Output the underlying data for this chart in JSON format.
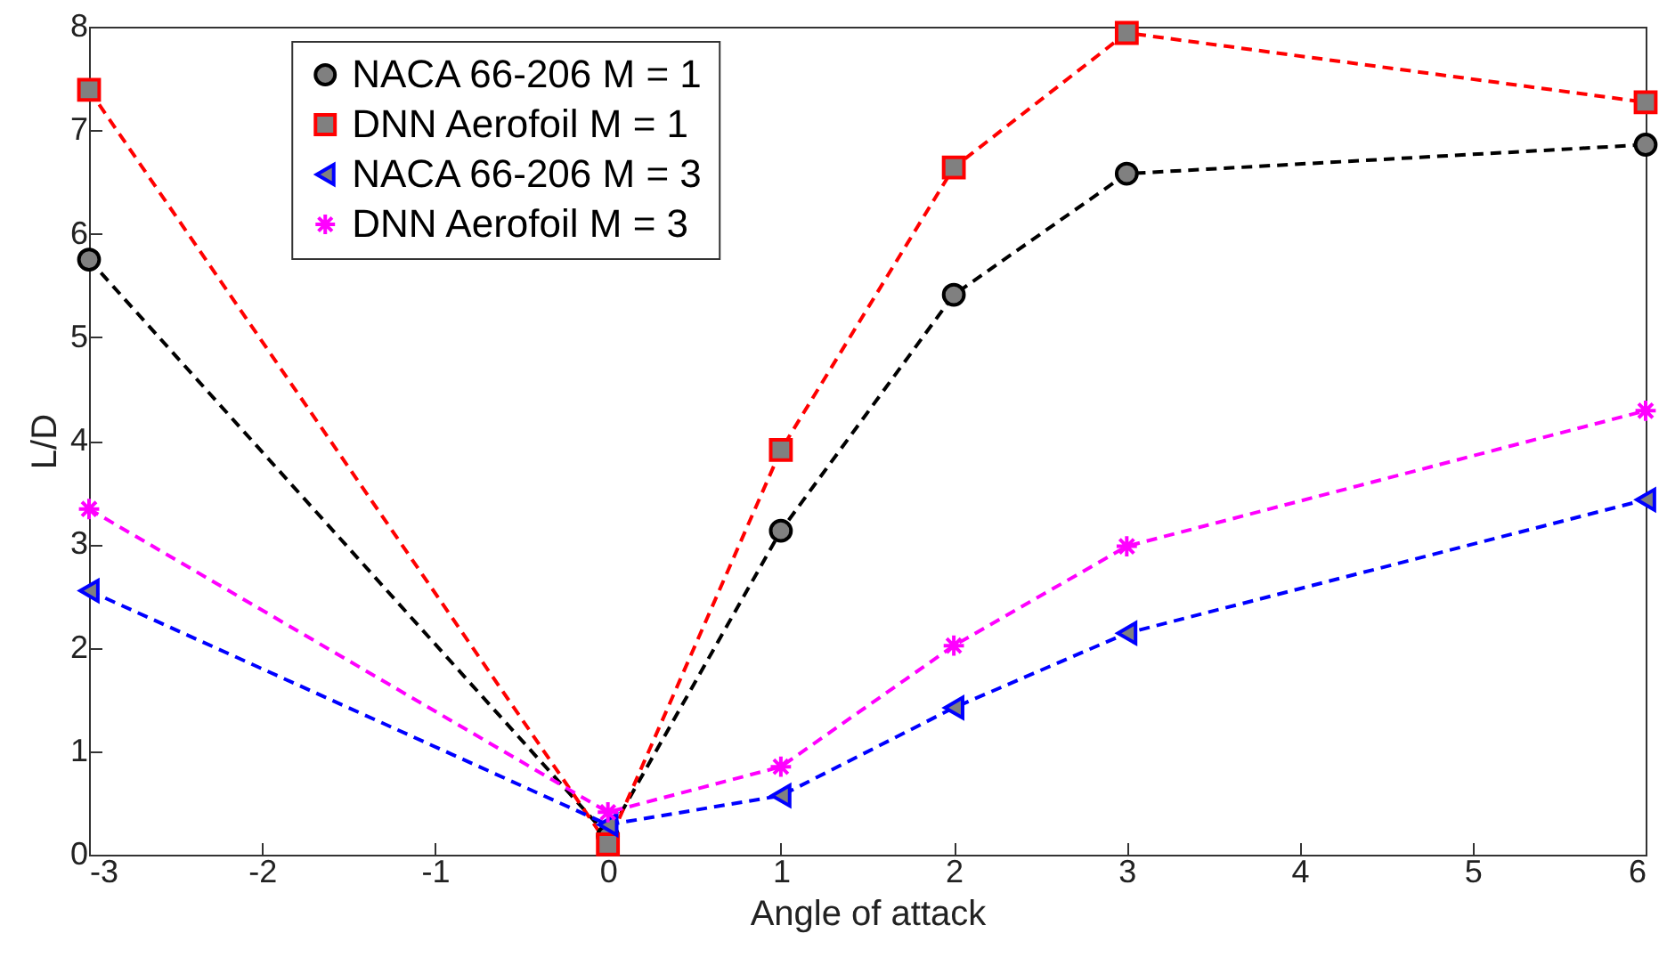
{
  "chart_data": {
    "type": "line",
    "xlabel": "Angle of attack",
    "ylabel": "L/D",
    "xlim": [
      -3,
      6
    ],
    "xticks": [
      -3,
      -2,
      -1,
      0,
      1,
      2,
      3,
      4,
      5,
      6
    ],
    "ylim": [
      0,
      8
    ],
    "yticks": [
      0,
      1,
      2,
      3,
      4,
      5,
      6,
      7,
      8
    ],
    "grid": false,
    "legend": "top left",
    "line_style": "dashed",
    "x": [
      -3,
      0,
      1,
      2,
      3,
      6
    ],
    "series": [
      {
        "name": "NACA 66-206 M = 1",
        "color": "#000000",
        "marker": "circle",
        "values": [
          5.75,
          0.18,
          3.13,
          5.41,
          6.58,
          6.86
        ]
      },
      {
        "name": "DNN Aerofoil M = 1",
        "color": "#ff0000",
        "marker": "square",
        "values": [
          7.39,
          0.1,
          3.91,
          6.64,
          7.94,
          7.27
        ]
      },
      {
        "name": "NACA 66-206 M = 3",
        "color": "#0000ff",
        "marker": "triangle",
        "values": [
          2.55,
          0.29,
          0.57,
          1.42,
          2.14,
          3.43
        ]
      },
      {
        "name": "DNN Aerofoil M = 3",
        "color": "#ff00ff",
        "marker": "cross",
        "values": [
          3.34,
          0.41,
          0.85,
          2.02,
          2.98,
          4.29
        ]
      }
    ]
  }
}
